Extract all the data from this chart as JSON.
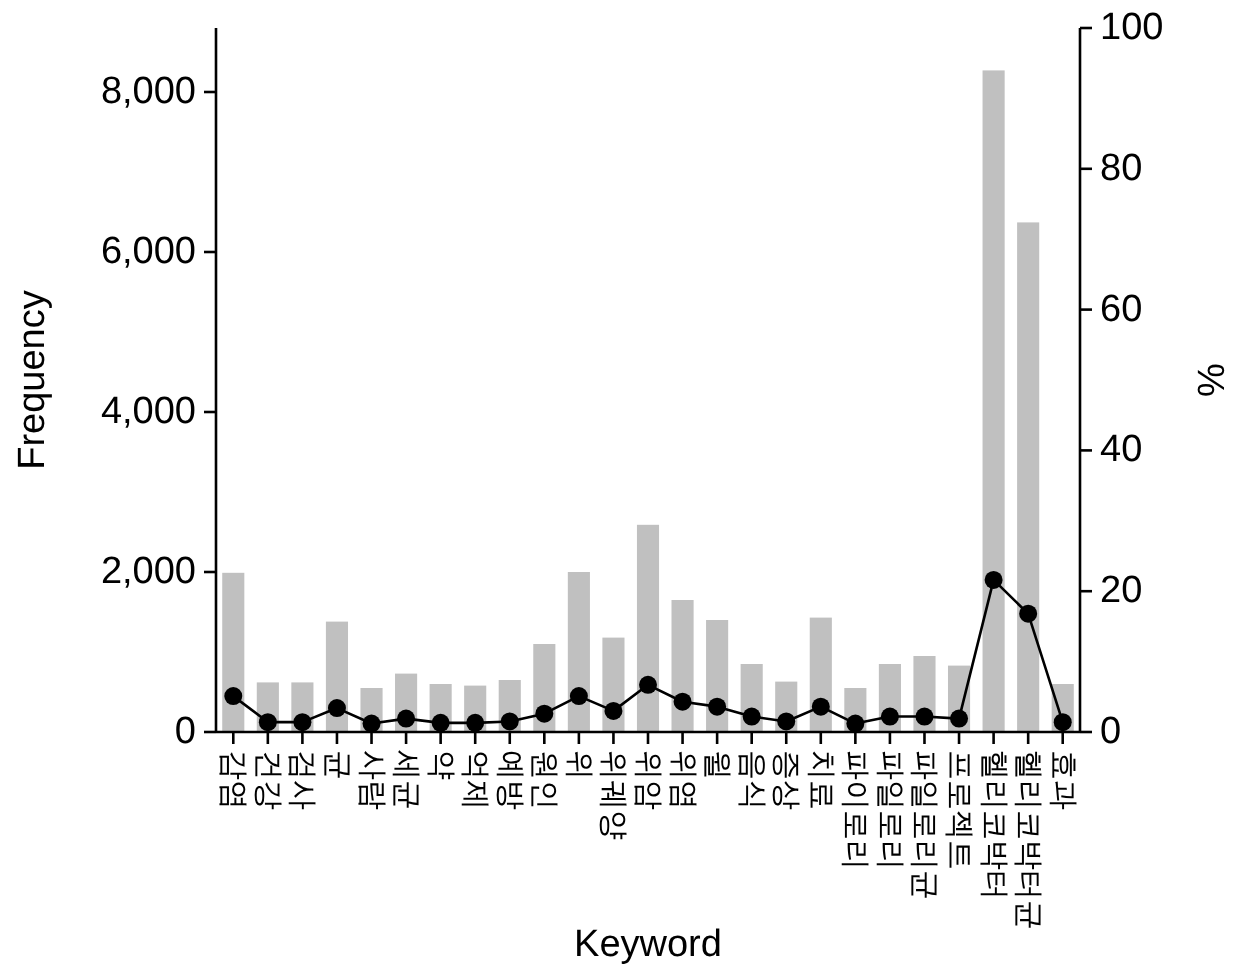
{
  "chart_data": {
    "type": "bar",
    "xlabel": "Keyword",
    "ylabel": "Frequency",
    "y2label": "%",
    "categories": [
      "감염",
      "건강",
      "검사",
      "균",
      "사람",
      "세균",
      "약",
      "억제",
      "예방",
      "원인",
      "위",
      "위궤양",
      "위암",
      "위염",
      "윌",
      "음식",
      "증상",
      "치료",
      "파이로리",
      "파일로리",
      "파일로리균",
      "프로젝트",
      "헬리코박터",
      "헬리코박터균",
      "효과"
    ],
    "ylim": [
      0,
      8800
    ],
    "yticks": [
      0,
      {
        "value": 2000,
        "label": "2,000"
      },
      {
        "value": 4000,
        "label": "4,000"
      },
      {
        "value": 6000,
        "label": "6,000"
      },
      {
        "value": 8000,
        "label": "8,000"
      }
    ],
    "y2lim": [
      0,
      100
    ],
    "y2ticks": [
      0,
      20,
      40,
      60,
      80,
      100
    ],
    "series": [
      {
        "color": "#c0c0c0",
        "values": [
          1990,
          620,
          620,
          1380,
          550,
          730,
          600,
          580,
          650,
          1100,
          2000,
          1180,
          2590,
          1650,
          1400,
          850,
          630,
          1430,
          550,
          850,
          950,
          830,
          8270,
          6370,
          600
        ]
      },
      {
        "type": "line",
        "axis": "y2",
        "color": "#000000",
        "marker": "circle",
        "line_style": "solid",
        "values": [
          5.1,
          1.4,
          1.4,
          3.4,
          1.2,
          1.9,
          1.3,
          1.3,
          1.5,
          2.6,
          5.1,
          3.0,
          6.7,
          4.3,
          3.6,
          2.2,
          1.5,
          3.6,
          1.2,
          2.2,
          2.2,
          1.9,
          21.6,
          16.8,
          1.4
        ]
      }
    ]
  }
}
